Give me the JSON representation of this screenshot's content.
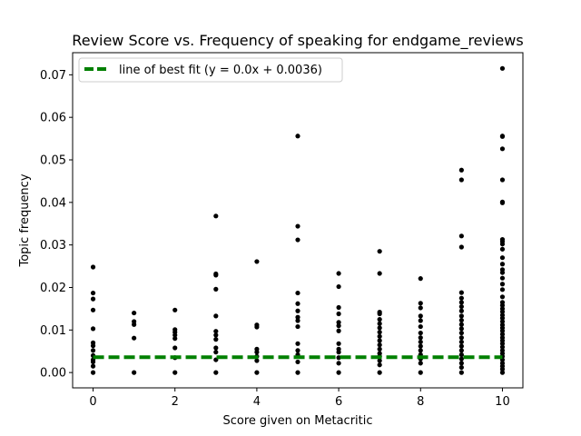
{
  "chart_data": {
    "type": "scatter",
    "title": "Review Score vs. Frequency of speaking for endgame_reviews",
    "xlabel": "Score given on Metacritic",
    "ylabel": "Topic frequency",
    "xlim": [
      -0.5,
      10.5
    ],
    "ylim": [
      -0.0036,
      0.0752
    ],
    "x_ticks": [
      0,
      2,
      4,
      6,
      8,
      10
    ],
    "y_ticks": [
      0.0,
      0.01,
      0.02,
      0.03,
      0.04,
      0.05,
      0.06,
      0.07
    ],
    "x_tick_labels": [
      "0",
      "2",
      "4",
      "6",
      "8",
      "10"
    ],
    "y_tick_labels": [
      "0.00",
      "0.01",
      "0.02",
      "0.03",
      "0.04",
      "0.05",
      "0.06",
      "0.07"
    ],
    "grid": false,
    "legend": {
      "position": "top-left",
      "entries": [
        {
          "label": "line of best fit (y = 0.0x + 0.0036)",
          "style": "dashed",
          "color": "#008000"
        }
      ]
    },
    "series": [
      {
        "kind": "scatter",
        "color": "#000000",
        "points": [
          [
            0,
            0.0
          ],
          [
            0,
            0.0015
          ],
          [
            0,
            0.0025
          ],
          [
            0,
            0.003
          ],
          [
            0,
            0.004
          ],
          [
            0,
            0.0052
          ],
          [
            0,
            0.0063
          ],
          [
            0,
            0.007
          ],
          [
            0,
            0.0103
          ],
          [
            0,
            0.0147
          ],
          [
            0,
            0.0173
          ],
          [
            0,
            0.0187
          ],
          [
            0,
            0.0248
          ],
          [
            1,
            0.0
          ],
          [
            1,
            0.0081
          ],
          [
            1,
            0.0113
          ],
          [
            1,
            0.012
          ],
          [
            1,
            0.014
          ],
          [
            2,
            0.0
          ],
          [
            2,
            0.0035
          ],
          [
            2,
            0.0058
          ],
          [
            2,
            0.008
          ],
          [
            2,
            0.0088
          ],
          [
            2,
            0.0095
          ],
          [
            2,
            0.0101
          ],
          [
            2,
            0.0147
          ],
          [
            3,
            0.0
          ],
          [
            3,
            0.003
          ],
          [
            3,
            0.0048
          ],
          [
            3,
            0.0058
          ],
          [
            3,
            0.0078
          ],
          [
            3,
            0.0088
          ],
          [
            3,
            0.0097
          ],
          [
            3,
            0.0133
          ],
          [
            3,
            0.0196
          ],
          [
            3,
            0.0229
          ],
          [
            3,
            0.0232
          ],
          [
            3,
            0.0368
          ],
          [
            4,
            0.0
          ],
          [
            4,
            0.0028
          ],
          [
            4,
            0.0038
          ],
          [
            4,
            0.0048
          ],
          [
            4,
            0.0055
          ],
          [
            4,
            0.0107
          ],
          [
            4,
            0.0112
          ],
          [
            4,
            0.0261
          ],
          [
            5,
            0.0
          ],
          [
            5,
            0.0025
          ],
          [
            5,
            0.0042
          ],
          [
            5,
            0.0052
          ],
          [
            5,
            0.0068
          ],
          [
            5,
            0.0108
          ],
          [
            5,
            0.0122
          ],
          [
            5,
            0.013
          ],
          [
            5,
            0.0145
          ],
          [
            5,
            0.0162
          ],
          [
            5,
            0.0187
          ],
          [
            5,
            0.0312
          ],
          [
            5,
            0.0344
          ],
          [
            5,
            0.0556
          ],
          [
            6,
            0.0
          ],
          [
            6,
            0.0022
          ],
          [
            6,
            0.0035
          ],
          [
            6,
            0.0048
          ],
          [
            6,
            0.0055
          ],
          [
            6,
            0.0068
          ],
          [
            6,
            0.0098
          ],
          [
            6,
            0.011
          ],
          [
            6,
            0.0118
          ],
          [
            6,
            0.0138
          ],
          [
            6,
            0.0153
          ],
          [
            6,
            0.0202
          ],
          [
            6,
            0.0233
          ],
          [
            7,
            0.0
          ],
          [
            7,
            0.0018
          ],
          [
            7,
            0.0028
          ],
          [
            7,
            0.0038
          ],
          [
            7,
            0.0045
          ],
          [
            7,
            0.0055
          ],
          [
            7,
            0.0065
          ],
          [
            7,
            0.0075
          ],
          [
            7,
            0.0085
          ],
          [
            7,
            0.0095
          ],
          [
            7,
            0.0105
          ],
          [
            7,
            0.0115
          ],
          [
            7,
            0.0125
          ],
          [
            7,
            0.0138
          ],
          [
            7,
            0.0142
          ],
          [
            7,
            0.0233
          ],
          [
            7,
            0.0285
          ],
          [
            8,
            0.0
          ],
          [
            8,
            0.0022
          ],
          [
            8,
            0.0032
          ],
          [
            8,
            0.0042
          ],
          [
            8,
            0.0052
          ],
          [
            8,
            0.0062
          ],
          [
            8,
            0.0072
          ],
          [
            8,
            0.0082
          ],
          [
            8,
            0.0093
          ],
          [
            8,
            0.0108
          ],
          [
            8,
            0.0122
          ],
          [
            8,
            0.0133
          ],
          [
            8,
            0.0152
          ],
          [
            8,
            0.0163
          ],
          [
            8,
            0.0221
          ],
          [
            9,
            0.0
          ],
          [
            9,
            0.0012
          ],
          [
            9,
            0.0022
          ],
          [
            9,
            0.0032
          ],
          [
            9,
            0.0042
          ],
          [
            9,
            0.0052
          ],
          [
            9,
            0.0062
          ],
          [
            9,
            0.0072
          ],
          [
            9,
            0.0082
          ],
          [
            9,
            0.0093
          ],
          [
            9,
            0.0103
          ],
          [
            9,
            0.0113
          ],
          [
            9,
            0.0123
          ],
          [
            9,
            0.0133
          ],
          [
            9,
            0.0145
          ],
          [
            9,
            0.0155
          ],
          [
            9,
            0.0165
          ],
          [
            9,
            0.0175
          ],
          [
            9,
            0.0188
          ],
          [
            9,
            0.0295
          ],
          [
            9,
            0.0321
          ],
          [
            9,
            0.0453
          ],
          [
            9,
            0.0476
          ],
          [
            10,
            0.0
          ],
          [
            10,
            0.0008
          ],
          [
            10,
            0.0015
          ],
          [
            10,
            0.0022
          ],
          [
            10,
            0.003
          ],
          [
            10,
            0.0038
          ],
          [
            10,
            0.0045
          ],
          [
            10,
            0.0052
          ],
          [
            10,
            0.006
          ],
          [
            10,
            0.0068
          ],
          [
            10,
            0.0075
          ],
          [
            10,
            0.0082
          ],
          [
            10,
            0.009
          ],
          [
            10,
            0.0098
          ],
          [
            10,
            0.0105
          ],
          [
            10,
            0.0112
          ],
          [
            10,
            0.012
          ],
          [
            10,
            0.0128
          ],
          [
            10,
            0.0135
          ],
          [
            10,
            0.0143
          ],
          [
            10,
            0.015
          ],
          [
            10,
            0.0158
          ],
          [
            10,
            0.0165
          ],
          [
            10,
            0.0178
          ],
          [
            10,
            0.0195
          ],
          [
            10,
            0.0208
          ],
          [
            10,
            0.0222
          ],
          [
            10,
            0.0235
          ],
          [
            10,
            0.0242
          ],
          [
            10,
            0.0255
          ],
          [
            10,
            0.027
          ],
          [
            10,
            0.029
          ],
          [
            10,
            0.0302
          ],
          [
            10,
            0.0308
          ],
          [
            10,
            0.0313
          ],
          [
            10,
            0.0399
          ],
          [
            10,
            0.0401
          ],
          [
            10,
            0.0453
          ],
          [
            10,
            0.0526
          ],
          [
            10,
            0.0555
          ],
          [
            10,
            0.0556
          ],
          [
            10,
            0.0715
          ]
        ]
      },
      {
        "kind": "line",
        "label": "line of best fit (y = 0.0x + 0.0036)",
        "color": "#008000",
        "style": "dashed",
        "x": [
          0,
          10
        ],
        "y": [
          0.0036,
          0.0036
        ]
      }
    ]
  }
}
